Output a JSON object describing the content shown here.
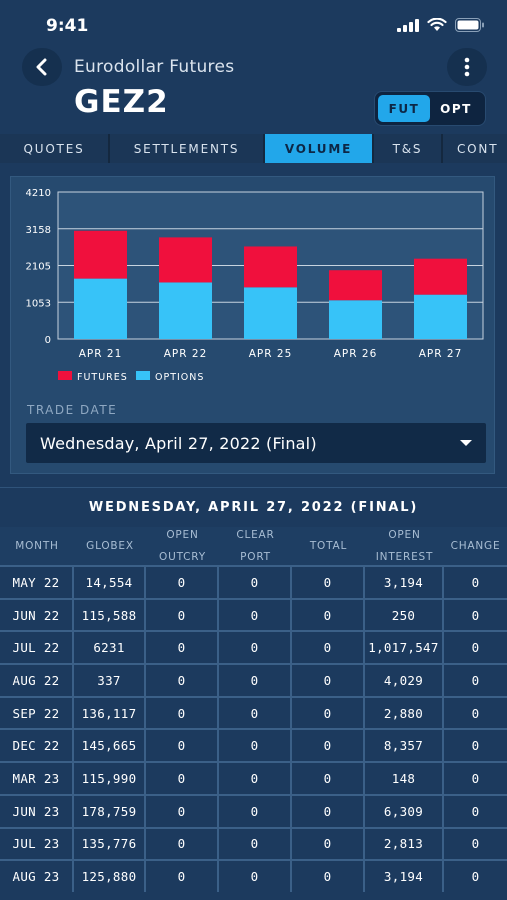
{
  "status_bar": {
    "time": "9:41"
  },
  "header": {
    "subtitle": "Eurodollar Futures",
    "title": "GEZ2"
  },
  "toggle": {
    "options": [
      "FUT",
      "OPT"
    ],
    "selected": "FUT"
  },
  "tabs": [
    {
      "label": "QUOTES",
      "active": false
    },
    {
      "label": "SETTLEMENTS",
      "active": false
    },
    {
      "label": "VOLUME",
      "active": true
    },
    {
      "label": "T&S",
      "active": false
    },
    {
      "label": "CONT",
      "active": false
    }
  ],
  "chart_data": {
    "type": "bar",
    "stacked": true,
    "categories": [
      "APR 21",
      "APR 22",
      "APR 25",
      "APR 26",
      "APR 27"
    ],
    "series": [
      {
        "name": "OPTIONS",
        "values": [
          1730,
          1620,
          1480,
          1110,
          1270
        ],
        "color": "#37c3f8"
      },
      {
        "name": "FUTURES",
        "values": [
          1370,
          1290,
          1170,
          860,
          1030
        ],
        "color": "#f0103d"
      }
    ],
    "yticks": [
      "4210",
      "3158",
      "2105",
      "1053",
      "0"
    ],
    "ylim": [
      0,
      4210
    ],
    "legend_position": "bottom-left",
    "grid": true
  },
  "trade_date": {
    "label": "TRADE DATE",
    "value": "Wednesday, April 27, 2022 (Final)"
  },
  "table": {
    "heading": "WEDNESDAY, APRIL 27, 2022 (FINAL)",
    "headers": [
      [
        "MONTH"
      ],
      [
        "GLOBEX"
      ],
      [
        "OPEN",
        "OUTCRY"
      ],
      [
        "CLEAR",
        "PORT"
      ],
      [
        "TOTAL"
      ],
      [
        "OPEN",
        "INTEREST"
      ],
      [
        "CHANGE"
      ]
    ],
    "rows": [
      [
        "MAY 22",
        "14,554",
        "0",
        "0",
        "0",
        "3,194",
        "0"
      ],
      [
        "JUN 22",
        "115,588",
        "0",
        "0",
        "0",
        "250",
        "0"
      ],
      [
        "JUL 22",
        "6231",
        "0",
        "0",
        "0",
        "1,017,547",
        "0"
      ],
      [
        "AUG 22",
        "337",
        "0",
        "0",
        "0",
        "4,029",
        "0"
      ],
      [
        "SEP 22",
        "136,117",
        "0",
        "0",
        "0",
        "2,880",
        "0"
      ],
      [
        "DEC 22",
        "145,665",
        "0",
        "0",
        "0",
        "8,357",
        "0"
      ],
      [
        "MAR 23",
        "115,990",
        "0",
        "0",
        "0",
        "148",
        "0"
      ],
      [
        "JUN 23",
        "178,759",
        "0",
        "0",
        "0",
        "6,309",
        "0"
      ],
      [
        "JUL 23",
        "135,776",
        "0",
        "0",
        "0",
        "2,813",
        "0"
      ],
      [
        "AUG 23",
        "125,880",
        "0",
        "0",
        "0",
        "3,194",
        "0"
      ]
    ]
  }
}
